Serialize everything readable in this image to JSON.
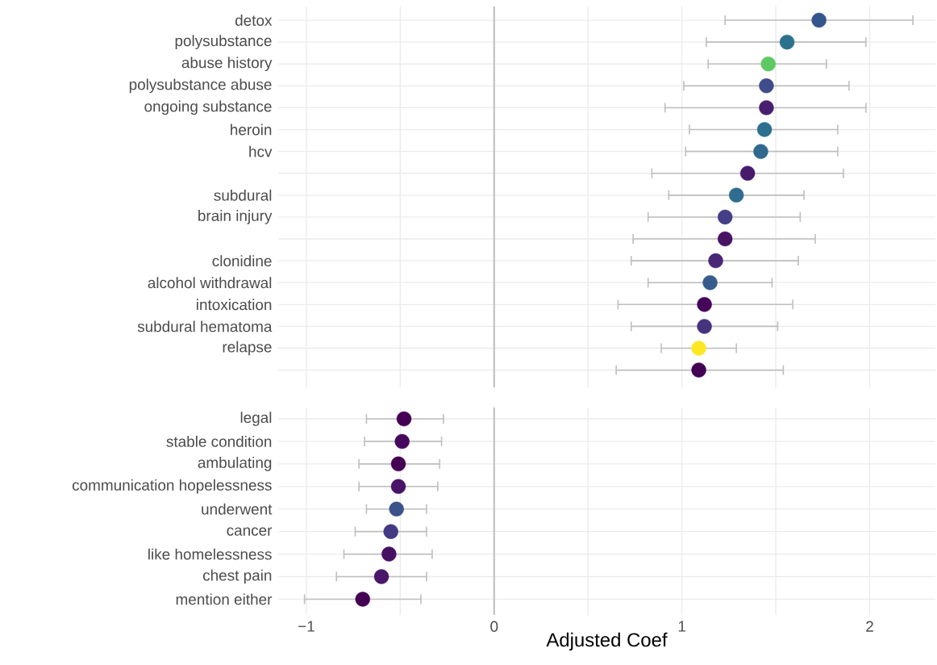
{
  "chart_data": [
    {
      "type": "scatter",
      "orientation": "horizontal",
      "categories": [
        "detox",
        "polysubstance",
        "abuse history",
        "polysubstance abuse",
        "ongoing substance",
        "heroin",
        "hcv",
        null,
        "subdural",
        "brain injury",
        null,
        "clonidine",
        "alcohol withdrawal",
        "intoxication",
        "subdural hematoma",
        "relapse",
        null
      ],
      "values": [
        1.73,
        1.56,
        1.46,
        1.45,
        1.45,
        1.44,
        1.42,
        1.35,
        1.29,
        1.23,
        1.23,
        1.18,
        1.15,
        1.12,
        1.12,
        1.09,
        1.09
      ],
      "errors": [
        [
          1.23,
          2.23
        ],
        [
          1.13,
          1.98
        ],
        [
          1.14,
          1.77
        ],
        [
          1.01,
          1.89
        ],
        [
          0.91,
          1.98
        ],
        [
          1.04,
          1.83
        ],
        [
          1.02,
          1.83
        ],
        [
          0.84,
          1.86
        ],
        [
          0.93,
          1.65
        ],
        [
          0.82,
          1.63
        ],
        [
          0.74,
          1.71
        ],
        [
          0.73,
          1.62
        ],
        [
          0.82,
          1.48
        ],
        [
          0.66,
          1.59
        ],
        [
          0.73,
          1.51
        ],
        [
          0.89,
          1.29
        ],
        [
          0.65,
          1.54
        ]
      ],
      "colors": [
        "#33568b",
        "#2c728e",
        "#5ec962",
        "#3e4c8a",
        "#481f70",
        "#2c6f8e",
        "#31688e",
        "#481a6c",
        "#2f6c8e",
        "#433e85",
        "#471365",
        "#482777",
        "#365c8d",
        "#450559",
        "#46337e",
        "#fde725",
        "#440154"
      ],
      "xlim": [
        -1.15,
        2.35
      ],
      "xticks": [
        -1,
        -0.5,
        0,
        0.5,
        1,
        1.5,
        2
      ],
      "ref_lines": [
        {
          "axis": "x",
          "value": 0,
          "color": "#bdbdbd"
        }
      ],
      "grid": true,
      "tick_labels": "y",
      "marker": "circle"
    },
    {
      "type": "scatter",
      "orientation": "horizontal",
      "categories": [
        "legal",
        "stable condition",
        "ambulating",
        "communication hopelessness",
        "underwent",
        "cancer",
        "like homelessness",
        "chest pain",
        "mention either"
      ],
      "values": [
        -0.48,
        -0.49,
        -0.51,
        -0.51,
        -0.52,
        -0.55,
        -0.56,
        -0.6,
        -0.7
      ],
      "errors": [
        [
          -0.68,
          -0.27
        ],
        [
          -0.69,
          -0.28
        ],
        [
          -0.72,
          -0.29
        ],
        [
          -0.72,
          -0.3
        ],
        [
          -0.68,
          -0.36
        ],
        [
          -0.74,
          -0.36
        ],
        [
          -0.8,
          -0.33
        ],
        [
          -0.84,
          -0.36
        ],
        [
          -1.01,
          -0.39
        ]
      ],
      "colors": [
        "#440154",
        "#46085c",
        "#440154",
        "#481467",
        "#3b528b",
        "#443983",
        "#471063",
        "#481769",
        "#440154"
      ],
      "xlim": [
        -1.15,
        2.35
      ],
      "xticks": [
        {
          "value": -1,
          "label": "−1"
        },
        {
          "value": -0.5,
          "label": null
        },
        0,
        {
          "value": 0.5,
          "label": null
        },
        1,
        {
          "value": 1.5,
          "label": null
        },
        2
      ],
      "xlabel": "Adjusted Coef",
      "ref_lines": [
        {
          "axis": "x",
          "value": 0,
          "color": "#bdbdbd"
        }
      ],
      "grid": true,
      "marker": "circle"
    }
  ]
}
